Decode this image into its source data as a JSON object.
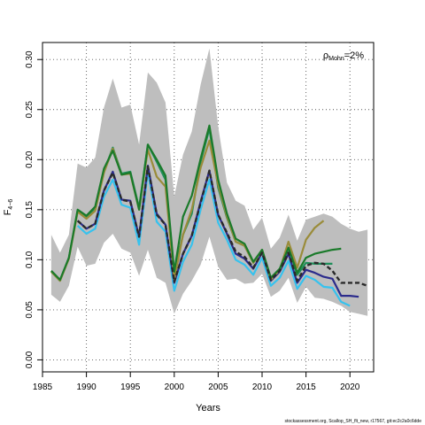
{
  "chart_data": {
    "type": "line",
    "xlabel": "Years",
    "ylabel": "F",
    "ylabel_subscript": "4−6",
    "xlim": [
      1985,
      2022.7
    ],
    "ylim": [
      -0.012,
      0.317
    ],
    "x_ticks": [
      1985,
      1990,
      1995,
      2000,
      2005,
      2010,
      2015,
      2020
    ],
    "y_ticks": [
      "0.00",
      "0.05",
      "0.10",
      "0.15",
      "0.20",
      "0.25",
      "0.30"
    ],
    "grid": true,
    "annotation": {
      "prefix": "ρ",
      "subscript": "Mohn",
      "suffix": "=2%"
    },
    "footer": "stockassessment.org, Scallop_SH_flt_new, r17567, git:ec2c2a0c6dde",
    "band": {
      "x": [
        1986,
        1987,
        1988,
        1989,
        1990,
        1991,
        1992,
        1993,
        1994,
        1995,
        1996,
        1997,
        1998,
        1999,
        2000,
        2001,
        2002,
        2003,
        2004,
        2005,
        2006,
        2007,
        2008,
        2009,
        2010,
        2011,
        2012,
        2013,
        2014,
        2015,
        2016,
        2017,
        2018,
        2019,
        2020,
        2021,
        2022
      ],
      "upper": [
        0.125,
        0.107,
        0.125,
        0.196,
        0.192,
        0.202,
        0.252,
        0.281,
        0.252,
        0.255,
        0.215,
        0.287,
        0.277,
        0.257,
        0.163,
        0.205,
        0.228,
        0.275,
        0.311,
        0.233,
        0.177,
        0.159,
        0.154,
        0.13,
        0.142,
        0.111,
        0.122,
        0.145,
        0.119,
        0.14,
        0.143,
        0.146,
        0.143,
        0.136,
        0.131,
        0.128,
        0.13
      ],
      "lower": [
        0.065,
        0.058,
        0.074,
        0.113,
        0.094,
        0.096,
        0.117,
        0.126,
        0.111,
        0.107,
        0.084,
        0.11,
        0.082,
        0.077,
        0.046,
        0.066,
        0.079,
        0.095,
        0.123,
        0.093,
        0.08,
        0.081,
        0.076,
        0.077,
        0.086,
        0.063,
        0.069,
        0.082,
        0.057,
        0.073,
        0.062,
        0.061,
        0.058,
        0.054,
        0.048,
        0.046,
        0.044
      ]
    },
    "series": [
      {
        "color": "#36c2ee",
        "width": 2.2,
        "x": [
          1989,
          1990,
          1991,
          1992,
          1993,
          1994,
          1995,
          1996,
          1997,
          1998,
          1999,
          2000,
          2001,
          2002,
          2003,
          2004,
          2005,
          2006,
          2007,
          2008,
          2009,
          2010,
          2011,
          2012,
          2013,
          2014,
          2015,
          2016,
          2017,
          2018,
          2019,
          2020
        ],
        "values": [
          0.134,
          0.126,
          0.131,
          0.163,
          0.18,
          0.155,
          0.152,
          0.115,
          0.188,
          0.138,
          0.128,
          0.069,
          0.098,
          0.115,
          0.15,
          0.18,
          0.137,
          0.12,
          0.1,
          0.095,
          0.085,
          0.102,
          0.074,
          0.082,
          0.099,
          0.071,
          0.084,
          0.08,
          0.073,
          0.072,
          0.058,
          0.054
        ]
      },
      {
        "color": "#2b2b8c",
        "width": 2.2,
        "x": [
          1989,
          1990,
          1991,
          1992,
          1993,
          1994,
          1995,
          1996,
          1997,
          1998,
          1999,
          2000,
          2001,
          2002,
          2003,
          2004,
          2005,
          2006,
          2007,
          2008,
          2009,
          2010,
          2011,
          2012,
          2013,
          2014,
          2015,
          2016,
          2017,
          2018,
          2019,
          2020,
          2021
        ],
        "values": [
          0.139,
          0.131,
          0.136,
          0.169,
          0.188,
          0.16,
          0.159,
          0.123,
          0.194,
          0.146,
          0.135,
          0.077,
          0.106,
          0.124,
          0.158,
          0.189,
          0.145,
          0.126,
          0.106,
          0.101,
          0.091,
          0.107,
          0.079,
          0.088,
          0.106,
          0.077,
          0.09,
          0.087,
          0.083,
          0.081,
          0.064,
          0.064,
          0.063
        ]
      },
      {
        "color": "#1f8f5a",
        "width": 2.2,
        "x": [
          1986,
          1987,
          1988,
          1989,
          1990,
          1991,
          1992,
          1993,
          1994,
          1995,
          1996,
          1997,
          1998,
          1999,
          2000,
          2001,
          2002,
          2003,
          2004,
          2005,
          2006,
          2007,
          2008,
          2009,
          2010,
          2011,
          2012,
          2013,
          2014,
          2015,
          2016,
          2017,
          2018
        ],
        "values": [
          0.088,
          0.079,
          0.102,
          0.149,
          0.143,
          0.151,
          0.188,
          0.212,
          0.186,
          0.188,
          0.152,
          0.215,
          0.198,
          0.18,
          0.086,
          0.125,
          0.146,
          0.198,
          0.231,
          0.172,
          0.142,
          0.118,
          0.114,
          0.097,
          0.11,
          0.081,
          0.09,
          0.112,
          0.085,
          0.097,
          0.096,
          0.096,
          0.096
        ]
      },
      {
        "color": "#9a8c3a",
        "width": 2.2,
        "x": [
          1986,
          1987,
          1988,
          1989,
          1990,
          1991,
          1992,
          1993,
          1994,
          1995,
          1996,
          1997,
          1998,
          1999,
          2000,
          2001,
          2002,
          2003,
          2004,
          2005,
          2006,
          2007,
          2008,
          2009,
          2010,
          2011,
          2012,
          2013,
          2014,
          2015,
          2016,
          2017
        ],
        "values": [
          0.088,
          0.079,
          0.101,
          0.148,
          0.141,
          0.149,
          0.187,
          0.211,
          0.185,
          0.186,
          0.15,
          0.21,
          0.183,
          0.173,
          0.08,
          0.125,
          0.15,
          0.192,
          0.219,
          0.175,
          0.143,
          0.118,
          0.114,
          0.097,
          0.11,
          0.08,
          0.09,
          0.118,
          0.092,
          0.12,
          0.132,
          0.139
        ]
      },
      {
        "color": "#1a7a2a",
        "width": 2.2,
        "x": [
          1986,
          1987,
          1988,
          1989,
          1990,
          1991,
          1992,
          1993,
          1994,
          1995,
          1996,
          1997,
          1998,
          1999,
          2000,
          2001,
          2002,
          2003,
          2004,
          2005,
          2006,
          2007,
          2008,
          2009,
          2010,
          2011,
          2012,
          2013,
          2014,
          2015,
          2016,
          2017,
          2018,
          2019
        ],
        "values": [
          0.089,
          0.08,
          0.102,
          0.15,
          0.144,
          0.153,
          0.191,
          0.209,
          0.185,
          0.187,
          0.15,
          0.215,
          0.2,
          0.184,
          0.088,
          0.143,
          0.164,
          0.201,
          0.234,
          0.18,
          0.146,
          0.121,
          0.116,
          0.098,
          0.11,
          0.082,
          0.091,
          0.112,
          0.087,
          0.102,
          0.106,
          0.108,
          0.11,
          0.111
        ]
      },
      {
        "color": "#2a2a2a",
        "width": 2.4,
        "dash": "5,3",
        "x": [
          1989,
          1990,
          1991,
          1992,
          1993,
          1994,
          1995,
          1996,
          1997,
          1998,
          1999,
          2000,
          2001,
          2002,
          2003,
          2004,
          2005,
          2006,
          2007,
          2008,
          2009,
          2010,
          2011,
          2012,
          2013,
          2014,
          2015,
          2016,
          2017,
          2018,
          2019,
          2020,
          2021,
          2022
        ],
        "values": [
          0.139,
          0.131,
          0.136,
          0.169,
          0.187,
          0.16,
          0.158,
          0.123,
          0.193,
          0.145,
          0.135,
          0.078,
          0.106,
          0.124,
          0.157,
          0.189,
          0.145,
          0.127,
          0.108,
          0.103,
          0.092,
          0.107,
          0.08,
          0.089,
          0.107,
          0.079,
          0.094,
          0.097,
          0.096,
          0.089,
          0.077,
          0.077,
          0.077,
          0.074
        ]
      }
    ]
  }
}
